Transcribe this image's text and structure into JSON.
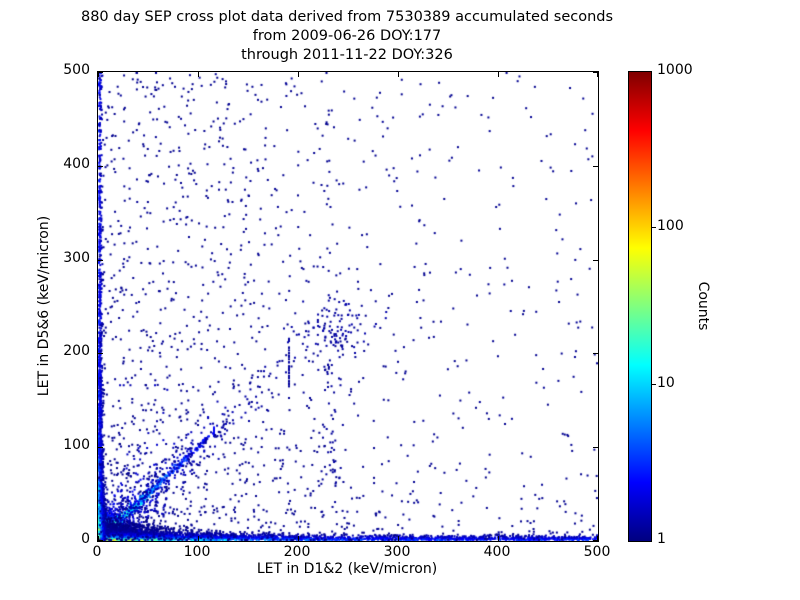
{
  "chart_data": {
    "type": "scatter",
    "subtype": "density-cross-plot",
    "title_lines": [
      "880 day SEP cross plot data derived from 7530389 accumulated seconds",
      "from 2009-06-26 DOY:177",
      "through 2011-11-22 DOY:326"
    ],
    "xlabel": "LET in D1&2 (keV/micron)",
    "ylabel": "LET in D5&6 (keV/micron)",
    "xlim": [
      0,
      500
    ],
    "ylim": [
      0,
      500
    ],
    "xticks": [
      0,
      100,
      200,
      300,
      400,
      500
    ],
    "yticks": [
      0,
      100,
      200,
      300,
      400,
      500
    ],
    "grid": false,
    "background": "#ffffff",
    "frame_color": "#000000",
    "colorbar": {
      "label": "Counts",
      "scale": "log",
      "range": [
        1,
        1000
      ],
      "ticks": [
        1000,
        100,
        10,
        1
      ],
      "colormap": "jet",
      "colormap_stops": [
        {
          "t": 0.0,
          "hex": "#000080"
        },
        {
          "t": 0.125,
          "hex": "#0000ff"
        },
        {
          "t": 0.375,
          "hex": "#00ffff"
        },
        {
          "t": 0.625,
          "hex": "#ffff00"
        },
        {
          "t": 0.875,
          "hex": "#ff0000"
        },
        {
          "t": 1.0,
          "hex": "#800000"
        }
      ]
    },
    "rng_seed": 42,
    "marker_size_px": 2,
    "density_features": [
      {
        "kind": "hotspot",
        "count": 4200,
        "cx": 0,
        "cy": 0,
        "scale": 8,
        "peak_log": 2.9,
        "color_falloff": 15
      },
      {
        "kind": "diagonal",
        "count": 620,
        "length": 115,
        "width_sigma": 2.4,
        "along_scale": 48,
        "log_at_origin": 1.45,
        "log_falloff": 60,
        "log_floor": 0.12
      },
      {
        "kind": "diagonal",
        "count": 400,
        "length": 190,
        "width_sigma": 13,
        "along_scale": 75,
        "log_at_origin": 0.35,
        "log_falloff": 80,
        "log_floor": 0.05
      },
      {
        "kind": "xband",
        "count": 3200,
        "exp_scale": 60,
        "uniform_frac": 0.45,
        "thickness_base": 2.2,
        "thickness_near": 9,
        "thickness_falloff": 70,
        "log_base": 0.5,
        "log_near": 1.75,
        "log_along_falloff": 80,
        "log_off_falloff": 3.2
      },
      {
        "kind": "yband",
        "count": 1500,
        "exp_scale": 95,
        "uniform_frac": 0.3,
        "thickness_base": 1.4,
        "thickness_near": 2.6,
        "thickness_falloff": 60,
        "log_base": 0.42,
        "log_near": 1.5,
        "log_along_falloff": 40,
        "log_off_falloff": 2.6
      },
      {
        "kind": "field",
        "count": 900,
        "x_sigma": 135,
        "y_pow": 1.9,
        "log": 0.05
      },
      {
        "kind": "field",
        "count": 450,
        "x_pow": 1.35,
        "y_pow": 2.3,
        "log": 0.05
      },
      {
        "kind": "uniform",
        "count": 240,
        "log": 0.05
      },
      {
        "kind": "cluster",
        "count": 95,
        "cx": 237,
        "cy": 226,
        "sx": 20,
        "sy": 15,
        "log": 0.1
      },
      {
        "kind": "vtrail",
        "count": 65,
        "x": 233,
        "x_sigma": 6,
        "y_min": 30,
        "y_max": 262,
        "log": 0.08
      },
      {
        "kind": "vstreaks",
        "columns": [
          22,
          30,
          39,
          48,
          57,
          66
        ],
        "count_per": 34,
        "y_scale": 48,
        "y_max": 165,
        "x_jitter": 1.6,
        "log": 0.25
      }
    ]
  }
}
